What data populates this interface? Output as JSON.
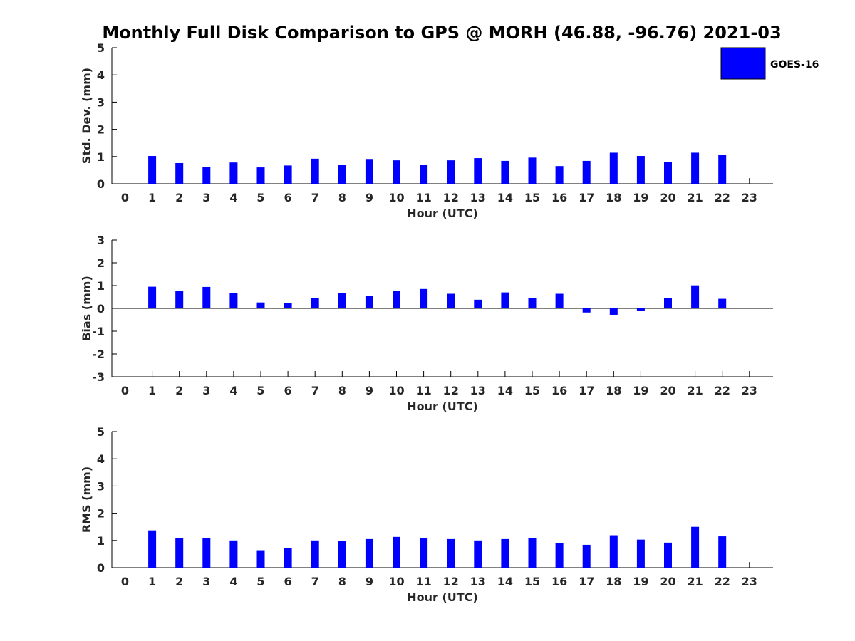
{
  "title": "Monthly Full Disk Comparison to GPS @ MORH (46.88, -96.76) 2021-03",
  "legend": {
    "label": "GOES-16",
    "color": "#0000ff"
  },
  "chart_data": [
    {
      "type": "bar",
      "ylabel": "Std. Dev. (mm)",
      "xlabel": "Hour (UTC)",
      "ylim": [
        0,
        5
      ],
      "yticks": [
        0,
        1,
        2,
        3,
        4,
        5
      ],
      "x": [
        0,
        1,
        2,
        3,
        4,
        5,
        6,
        7,
        8,
        9,
        10,
        11,
        12,
        13,
        14,
        15,
        16,
        17,
        18,
        19,
        20,
        21,
        22,
        23
      ],
      "series": [
        {
          "name": "GOES-16",
          "values": [
            null,
            1.02,
            0.76,
            0.62,
            0.78,
            0.6,
            0.67,
            0.92,
            0.7,
            0.91,
            0.86,
            0.7,
            0.86,
            0.94,
            0.84,
            0.96,
            0.65,
            0.84,
            1.14,
            1.02,
            0.8,
            1.14,
            1.07,
            null
          ]
        }
      ]
    },
    {
      "type": "bar",
      "ylabel": "Bias (mm)",
      "xlabel": "Hour (UTC)",
      "ylim": [
        -3,
        3
      ],
      "yticks": [
        -3,
        -2,
        -1,
        0,
        1,
        2,
        3
      ],
      "x": [
        0,
        1,
        2,
        3,
        4,
        5,
        6,
        7,
        8,
        9,
        10,
        11,
        12,
        13,
        14,
        15,
        16,
        17,
        18,
        19,
        20,
        21,
        22,
        23
      ],
      "series": [
        {
          "name": "GOES-16",
          "values": [
            null,
            0.95,
            0.76,
            0.94,
            0.66,
            0.26,
            0.22,
            0.44,
            0.66,
            0.54,
            0.76,
            0.85,
            0.64,
            0.38,
            0.7,
            0.44,
            0.64,
            -0.18,
            -0.28,
            -0.1,
            0.45,
            1.01,
            0.42,
            null
          ]
        }
      ]
    },
    {
      "type": "bar",
      "ylabel": "RMS (mm)",
      "xlabel": "Hour (UTC)",
      "ylim": [
        0,
        5
      ],
      "yticks": [
        0,
        1,
        2,
        3,
        4,
        5
      ],
      "x": [
        0,
        1,
        2,
        3,
        4,
        5,
        6,
        7,
        8,
        9,
        10,
        11,
        12,
        13,
        14,
        15,
        16,
        17,
        18,
        19,
        20,
        21,
        22,
        23
      ],
      "series": [
        {
          "name": "GOES-16",
          "values": [
            null,
            1.37,
            1.08,
            1.1,
            1.0,
            0.64,
            0.72,
            1.0,
            0.97,
            1.05,
            1.13,
            1.1,
            1.05,
            1.0,
            1.05,
            1.08,
            0.9,
            0.84,
            1.19,
            1.03,
            0.92,
            1.5,
            1.15,
            null
          ]
        }
      ]
    }
  ]
}
